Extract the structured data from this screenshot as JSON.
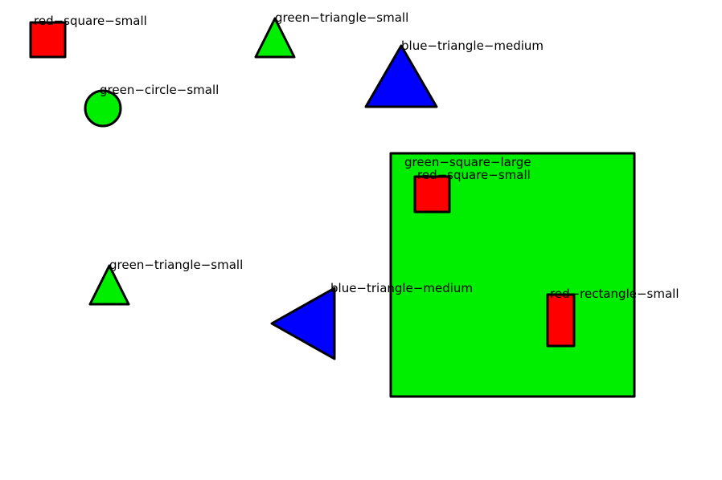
{
  "colors": {
    "background": "#ffffff",
    "outline": "#000000",
    "red": "#ff0000",
    "green": "#00ee00",
    "blue": "#0000ff"
  },
  "shapes": [
    {
      "id": "s1",
      "kind": "square",
      "color": "red",
      "label": "red−square−small"
    },
    {
      "id": "s2",
      "kind": "triangle",
      "color": "green",
      "label": "green−triangle−small"
    },
    {
      "id": "s3",
      "kind": "triangle",
      "color": "blue",
      "label": "blue−triangle−medium"
    },
    {
      "id": "s4",
      "kind": "circle",
      "color": "green",
      "label": "green−circle−small"
    },
    {
      "id": "s5",
      "kind": "square",
      "color": "green",
      "label": "green−square−large"
    },
    {
      "id": "s6",
      "kind": "square",
      "color": "red",
      "label": "red−square−small"
    },
    {
      "id": "s7",
      "kind": "triangle",
      "color": "green",
      "label": "green−triangle−small"
    },
    {
      "id": "s8",
      "kind": "triangle",
      "color": "blue",
      "label": "blue−triangle−medium"
    },
    {
      "id": "s9",
      "kind": "rectangle",
      "color": "red",
      "label": "red−rectangle−small"
    }
  ]
}
